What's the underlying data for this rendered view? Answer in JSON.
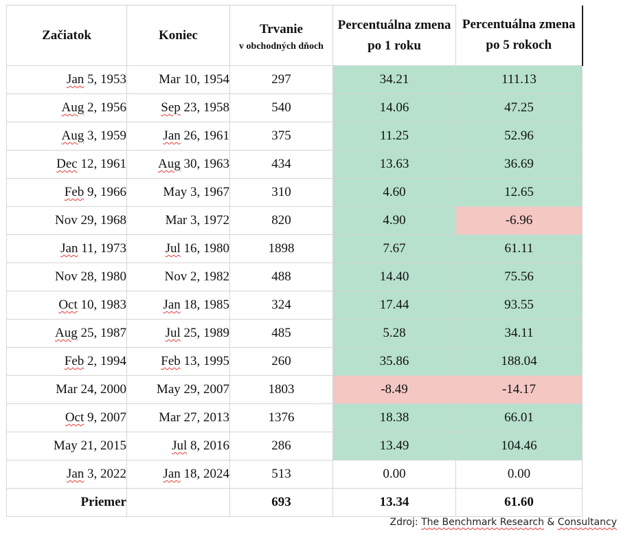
{
  "headers": {
    "start": "Začiatok",
    "end": "Koniec",
    "duration": "Trvanie",
    "duration_sub": "v obchodných dňoch",
    "change1_line1": "Percentuálna zmena",
    "change1_line2": "po 1 roku",
    "change5_line1": "Percentuálna zmena",
    "change5_line2": "po 5 rokoch"
  },
  "rows": [
    {
      "start": [
        "Jan",
        " 5, 1953"
      ],
      "end": [
        "Mar 10, 1954",
        ""
      ],
      "duration": "297",
      "change1": "34.21",
      "change5": "111.13",
      "c1": "pos",
      "c5": "pos"
    },
    {
      "start": [
        "Aug",
        " 2, 1956"
      ],
      "end": [
        "Sep",
        " 23, 1958"
      ],
      "duration": "540",
      "change1": "14.06",
      "change5": "47.25",
      "c1": "pos",
      "c5": "pos"
    },
    {
      "start": [
        "Aug",
        " 3, 1959"
      ],
      "end": [
        "Jan",
        " 26, 1961"
      ],
      "duration": "375",
      "change1": "11.25",
      "change5": "52.96",
      "c1": "pos",
      "c5": "pos"
    },
    {
      "start": [
        "Dec",
        " 12, 1961"
      ],
      "end": [
        "Aug",
        " 30, 1963"
      ],
      "duration": "434",
      "change1": "13.63",
      "change5": "36.69",
      "c1": "pos",
      "c5": "pos"
    },
    {
      "start": [
        "Feb",
        " 9, 1966"
      ],
      "end": [
        "May 3, 1967",
        ""
      ],
      "duration": "310",
      "change1": "4.60",
      "change5": "12.65",
      "c1": "pos",
      "c5": "pos"
    },
    {
      "start": [
        "Nov 29, 1968",
        ""
      ],
      "end": [
        "Mar 3, 1972",
        ""
      ],
      "duration": "820",
      "change1": "4.90",
      "change5": "-6.96",
      "c1": "pos",
      "c5": "neg"
    },
    {
      "start": [
        "Jan",
        " 11, 1973"
      ],
      "end": [
        "Jul",
        " 16, 1980"
      ],
      "duration": "1898",
      "change1": "7.67",
      "change5": "61.11",
      "c1": "pos",
      "c5": "pos"
    },
    {
      "start": [
        "Nov 28, 1980",
        ""
      ],
      "end": [
        "Nov 2, 1982",
        ""
      ],
      "duration": "488",
      "change1": "14.40",
      "change5": "75.56",
      "c1": "pos",
      "c5": "pos"
    },
    {
      "start": [
        "Oct",
        " 10, 1983"
      ],
      "end": [
        "Jan",
        " 18, 1985"
      ],
      "duration": "324",
      "change1": "17.44",
      "change5": "93.55",
      "c1": "pos",
      "c5": "pos"
    },
    {
      "start": [
        "Aug",
        " 25, 1987"
      ],
      "end": [
        "Jul",
        " 25, 1989"
      ],
      "duration": "485",
      "change1": "5.28",
      "change5": "34.11",
      "c1": "pos",
      "c5": "pos"
    },
    {
      "start": [
        "Feb",
        " 2, 1994"
      ],
      "end": [
        "Feb",
        " 13, 1995"
      ],
      "duration": "260",
      "change1": "35.86",
      "change5": "188.04",
      "c1": "pos",
      "c5": "pos"
    },
    {
      "start": [
        "Mar 24, 2000",
        ""
      ],
      "end": [
        "May 29, 2007",
        ""
      ],
      "duration": "1803",
      "change1": "-8.49",
      "change5": "-14.17",
      "c1": "neg",
      "c5": "neg"
    },
    {
      "start": [
        "Oct",
        " 9, 2007"
      ],
      "end": [
        "Mar 27, 2013",
        ""
      ],
      "duration": "1376",
      "change1": "18.38",
      "change5": "66.01",
      "c1": "pos",
      "c5": "pos"
    },
    {
      "start": [
        "May 21, 2015",
        ""
      ],
      "end": [
        "Jul",
        " 8, 2016"
      ],
      "duration": "286",
      "change1": "13.49",
      "change5": "104.46",
      "c1": "pos",
      "c5": "pos"
    },
    {
      "start": [
        "Jan",
        " 3, 2022"
      ],
      "end": [
        "Jan",
        " 18, 2024"
      ],
      "duration": "513",
      "change1": "0.00",
      "change5": "0.00",
      "c1": "none",
      "c5": "none"
    }
  ],
  "average": {
    "label": "Priemer",
    "duration": "693",
    "change1": "13.34",
    "change5": "61.60"
  },
  "source": {
    "prefix": "Zdroj: ",
    "underlined": "The Benchmark Research",
    "suffix": " & ",
    "underlined2": "Consultancy"
  },
  "colors": {
    "positive": "#b7e1cd",
    "negative": "#f4c7c3"
  }
}
